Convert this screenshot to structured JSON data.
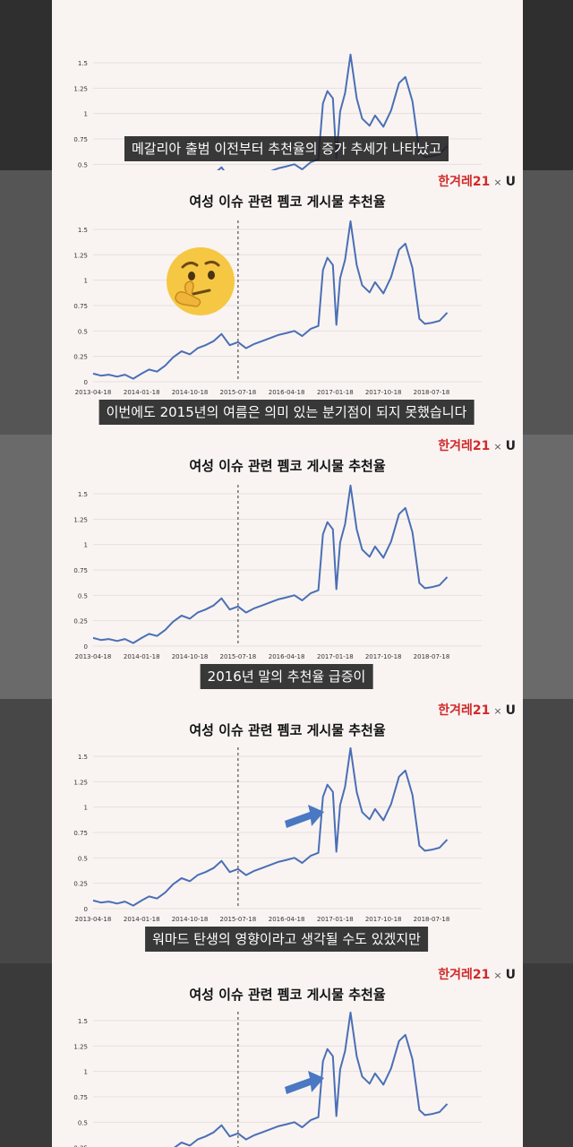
{
  "brand": {
    "hani": "한겨레21",
    "x": "×",
    "u": "U"
  },
  "chart_title": "여성 이슈 관련 펨코 게시물 추천율",
  "captions": [
    "메갈리아 출범 이전부터 추천율의 증가 추세가 나타났고",
    "이번에도 2015년의 여름은 의미 있는 분기점이 되지 못했습니다",
    "2016년 말의 추천율 급증이",
    "워마드 탄생의 영향이라고 생각될 수도 있겠지만"
  ],
  "icons": {
    "thinking": "thinking-face-emoji",
    "arrow": "blue-right-arrow"
  },
  "colors": {
    "line": "#4a6fb5",
    "arrow": "#4a78c2",
    "brand": "#d12a2a"
  },
  "chart_data": {
    "type": "line",
    "title": "여성 이슈 관련 펨코 게시물 추천율",
    "xlabel": "",
    "ylabel": "",
    "x_ticks": [
      "2013-04-18",
      "2014-01-18",
      "2014-10-18",
      "2015-07-18",
      "2016-04-18",
      "2017-01-18",
      "2017-10-18",
      "2018-07-18"
    ],
    "y_ticks": [
      "0",
      "0.25",
      "0.5",
      "0.75",
      "1",
      "1.25",
      "1.5"
    ],
    "ylim": [
      0,
      1.6
    ],
    "vline": "2015-07-18",
    "series": [
      {
        "points": [
          [
            "2013-04-18",
            0.08
          ],
          [
            "2013-06-01",
            0.06
          ],
          [
            "2013-07-15",
            0.07
          ],
          [
            "2013-09-01",
            0.05
          ],
          [
            "2013-10-15",
            0.07
          ],
          [
            "2013-12-01",
            0.03
          ],
          [
            "2014-01-18",
            0.08
          ],
          [
            "2014-03-01",
            0.12
          ],
          [
            "2014-04-15",
            0.1
          ],
          [
            "2014-06-01",
            0.16
          ],
          [
            "2014-07-15",
            0.24
          ],
          [
            "2014-09-01",
            0.3
          ],
          [
            "2014-10-18",
            0.27
          ],
          [
            "2014-12-01",
            0.33
          ],
          [
            "2015-01-15",
            0.36
          ],
          [
            "2015-03-01",
            0.4
          ],
          [
            "2015-04-15",
            0.47
          ],
          [
            "2015-06-01",
            0.36
          ],
          [
            "2015-07-18",
            0.39
          ],
          [
            "2015-09-01",
            0.33
          ],
          [
            "2015-10-15",
            0.37
          ],
          [
            "2015-12-01",
            0.4
          ],
          [
            "2016-01-15",
            0.43
          ],
          [
            "2016-03-01",
            0.46
          ],
          [
            "2016-04-18",
            0.48
          ],
          [
            "2016-06-01",
            0.5
          ],
          [
            "2016-07-15",
            0.45
          ],
          [
            "2016-09-01",
            0.52
          ],
          [
            "2016-10-15",
            0.55
          ],
          [
            "2016-11-10",
            1.1
          ],
          [
            "2016-12-05",
            1.22
          ],
          [
            "2017-01-05",
            1.15
          ],
          [
            "2017-01-25",
            0.56
          ],
          [
            "2017-02-15",
            1.02
          ],
          [
            "2017-03-15",
            1.2
          ],
          [
            "2017-04-15",
            1.58
          ],
          [
            "2017-05-20",
            1.15
          ],
          [
            "2017-06-20",
            0.95
          ],
          [
            "2017-08-01",
            0.88
          ],
          [
            "2017-09-01",
            0.98
          ],
          [
            "2017-10-18",
            0.87
          ],
          [
            "2017-12-01",
            1.03
          ],
          [
            "2018-01-15",
            1.3
          ],
          [
            "2018-02-20",
            1.36
          ],
          [
            "2018-04-01",
            1.12
          ],
          [
            "2018-05-10",
            0.62
          ],
          [
            "2018-06-10",
            0.57
          ],
          [
            "2018-07-18",
            0.58
          ],
          [
            "2018-09-01",
            0.6
          ],
          [
            "2018-10-15",
            0.68
          ]
        ]
      }
    ]
  }
}
